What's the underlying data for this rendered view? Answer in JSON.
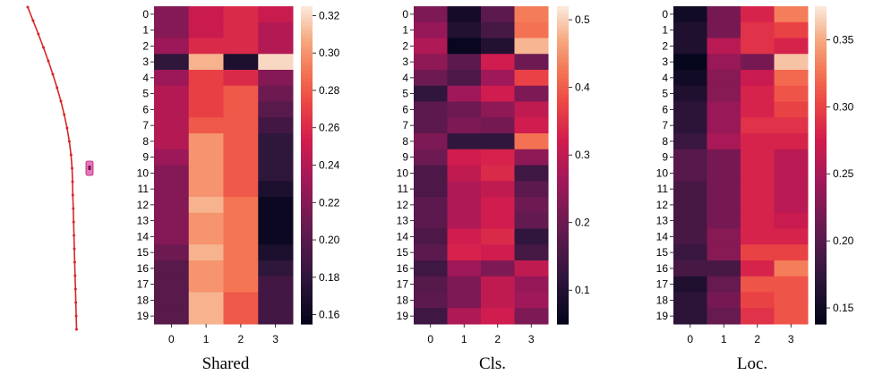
{
  "trajectory": {
    "line_color": "#d62728",
    "marker_color": "#e377c2"
  },
  "chart_data": [
    {
      "type": "heatmap",
      "title": "Shared",
      "rows": [
        "0",
        "1",
        "2",
        "3",
        "4",
        "5",
        "6",
        "7",
        "8",
        "9",
        "10",
        "11",
        "12",
        "13",
        "14",
        "15",
        "16",
        "17",
        "18",
        "19"
      ],
      "cols": [
        "0",
        "1",
        "2",
        "3"
      ],
      "colorbar": {
        "min": 0.155,
        "max": 0.325,
        "ticks": [
          "0.32",
          "0.30",
          "0.28",
          "0.26",
          "0.24",
          "0.22",
          "0.20",
          "0.18",
          "0.16"
        ],
        "tick_values": [
          0.32,
          0.3,
          0.28,
          0.26,
          0.24,
          0.22,
          0.2,
          0.18,
          0.16
        ]
      },
      "values": [
        [
          0.22,
          0.25,
          0.26,
          0.25
        ],
        [
          0.22,
          0.25,
          0.26,
          0.24
        ],
        [
          0.23,
          0.26,
          0.26,
          0.24
        ],
        [
          0.18,
          0.31,
          0.17,
          0.32
        ],
        [
          0.23,
          0.27,
          0.26,
          0.22
        ],
        [
          0.24,
          0.27,
          0.28,
          0.21
        ],
        [
          0.24,
          0.27,
          0.28,
          0.2
        ],
        [
          0.24,
          0.28,
          0.28,
          0.19
        ],
        [
          0.24,
          0.3,
          0.28,
          0.18
        ],
        [
          0.23,
          0.3,
          0.28,
          0.18
        ],
        [
          0.22,
          0.3,
          0.28,
          0.18
        ],
        [
          0.22,
          0.3,
          0.28,
          0.17
        ],
        [
          0.22,
          0.31,
          0.29,
          0.16
        ],
        [
          0.22,
          0.3,
          0.29,
          0.16
        ],
        [
          0.22,
          0.3,
          0.29,
          0.16
        ],
        [
          0.21,
          0.31,
          0.29,
          0.17
        ],
        [
          0.2,
          0.3,
          0.29,
          0.18
        ],
        [
          0.2,
          0.3,
          0.29,
          0.19
        ],
        [
          0.2,
          0.31,
          0.28,
          0.19
        ],
        [
          0.2,
          0.31,
          0.28,
          0.19
        ]
      ]
    },
    {
      "type": "heatmap",
      "title": "Cls.",
      "rows": [
        "0",
        "1",
        "2",
        "3",
        "4",
        "5",
        "6",
        "7",
        "8",
        "9",
        "10",
        "11",
        "12",
        "13",
        "14",
        "15",
        "16",
        "17",
        "18",
        "19"
      ],
      "cols": [
        "0",
        "1",
        "2",
        "3"
      ],
      "colorbar": {
        "min": 0.05,
        "max": 0.52,
        "ticks": [
          "0.5",
          "0.4",
          "0.3",
          "0.2",
          "0.1"
        ],
        "tick_values": [
          0.5,
          0.4,
          0.3,
          0.2,
          0.1
        ]
      },
      "values": [
        [
          0.22,
          0.08,
          0.18,
          0.43
        ],
        [
          0.25,
          0.1,
          0.15,
          0.42
        ],
        [
          0.28,
          0.06,
          0.1,
          0.48
        ],
        [
          0.24,
          0.18,
          0.32,
          0.2
        ],
        [
          0.2,
          0.16,
          0.26,
          0.37
        ],
        [
          0.12,
          0.26,
          0.32,
          0.22
        ],
        [
          0.18,
          0.2,
          0.24,
          0.3
        ],
        [
          0.18,
          0.22,
          0.21,
          0.32
        ],
        [
          0.22,
          0.12,
          0.12,
          0.42
        ],
        [
          0.2,
          0.32,
          0.33,
          0.24
        ],
        [
          0.16,
          0.3,
          0.34,
          0.14
        ],
        [
          0.16,
          0.28,
          0.3,
          0.18
        ],
        [
          0.18,
          0.28,
          0.32,
          0.2
        ],
        [
          0.18,
          0.28,
          0.32,
          0.19
        ],
        [
          0.16,
          0.32,
          0.34,
          0.12
        ],
        [
          0.18,
          0.33,
          0.32,
          0.15
        ],
        [
          0.14,
          0.26,
          0.22,
          0.3
        ],
        [
          0.17,
          0.22,
          0.3,
          0.25
        ],
        [
          0.18,
          0.22,
          0.3,
          0.26
        ],
        [
          0.14,
          0.28,
          0.32,
          0.22
        ]
      ]
    },
    {
      "type": "heatmap",
      "title": "Loc.",
      "rows": [
        "0",
        "1",
        "2",
        "3",
        "4",
        "5",
        "6",
        "7",
        "8",
        "9",
        "10",
        "11",
        "12",
        "13",
        "14",
        "15",
        "16",
        "17",
        "18",
        "19"
      ],
      "cols": [
        "0",
        "1",
        "2",
        "3"
      ],
      "colorbar": {
        "min": 0.138,
        "max": 0.375,
        "ticks": [
          "0.35",
          "0.30",
          "0.25",
          "0.20",
          "0.15"
        ],
        "tick_values": [
          0.35,
          0.3,
          0.25,
          0.2,
          0.15
        ]
      },
      "values": [
        [
          0.15,
          0.22,
          0.28,
          0.33
        ],
        [
          0.16,
          0.22,
          0.29,
          0.3
        ],
        [
          0.16,
          0.26,
          0.29,
          0.28
        ],
        [
          0.14,
          0.24,
          0.22,
          0.36
        ],
        [
          0.15,
          0.23,
          0.27,
          0.32
        ],
        [
          0.16,
          0.23,
          0.28,
          0.31
        ],
        [
          0.17,
          0.24,
          0.28,
          0.3
        ],
        [
          0.17,
          0.24,
          0.29,
          0.29
        ],
        [
          0.18,
          0.25,
          0.28,
          0.28
        ],
        [
          0.2,
          0.22,
          0.28,
          0.26
        ],
        [
          0.2,
          0.22,
          0.28,
          0.26
        ],
        [
          0.19,
          0.22,
          0.28,
          0.26
        ],
        [
          0.19,
          0.22,
          0.28,
          0.26
        ],
        [
          0.19,
          0.22,
          0.28,
          0.27
        ],
        [
          0.19,
          0.23,
          0.28,
          0.28
        ],
        [
          0.18,
          0.23,
          0.3,
          0.3
        ],
        [
          0.19,
          0.19,
          0.28,
          0.33
        ],
        [
          0.16,
          0.21,
          0.31,
          0.31
        ],
        [
          0.17,
          0.22,
          0.3,
          0.31
        ],
        [
          0.17,
          0.21,
          0.29,
          0.31
        ]
      ]
    }
  ]
}
